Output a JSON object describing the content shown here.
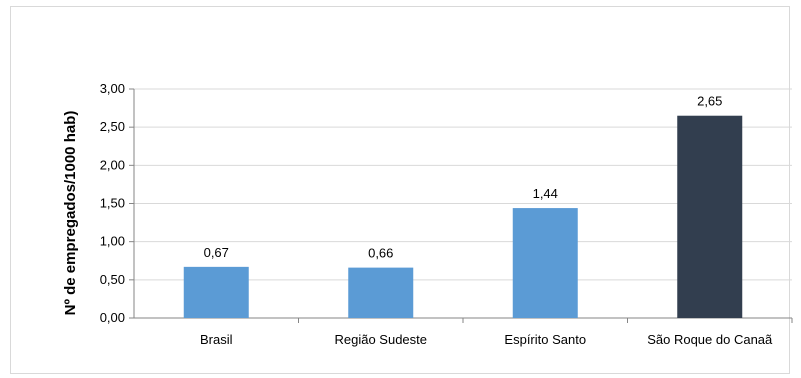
{
  "chart_data": {
    "type": "bar",
    "title": "",
    "xlabel": "",
    "ylabel": "Nº de empregados/1000 hab)",
    "ylim": [
      0,
      3
    ],
    "yticks": [
      "0,00",
      "0,50",
      "1,00",
      "1,50",
      "2,00",
      "2,50",
      "3,00"
    ],
    "ytick_values": [
      0,
      0.5,
      1,
      1.5,
      2,
      2.5,
      3
    ],
    "grid": true,
    "legend": "none",
    "categories": [
      "Brasil",
      "Região Sudeste",
      "Espírito Santo",
      "São Roque do Canaã"
    ],
    "values": [
      0.67,
      0.66,
      1.44,
      2.65
    ],
    "data_labels": [
      "0,67",
      "0,66",
      "1,44",
      "2,65"
    ],
    "colors": [
      "#5b9bd5",
      "#5b9bd5",
      "#5b9bd5",
      "#323e4f"
    ]
  }
}
